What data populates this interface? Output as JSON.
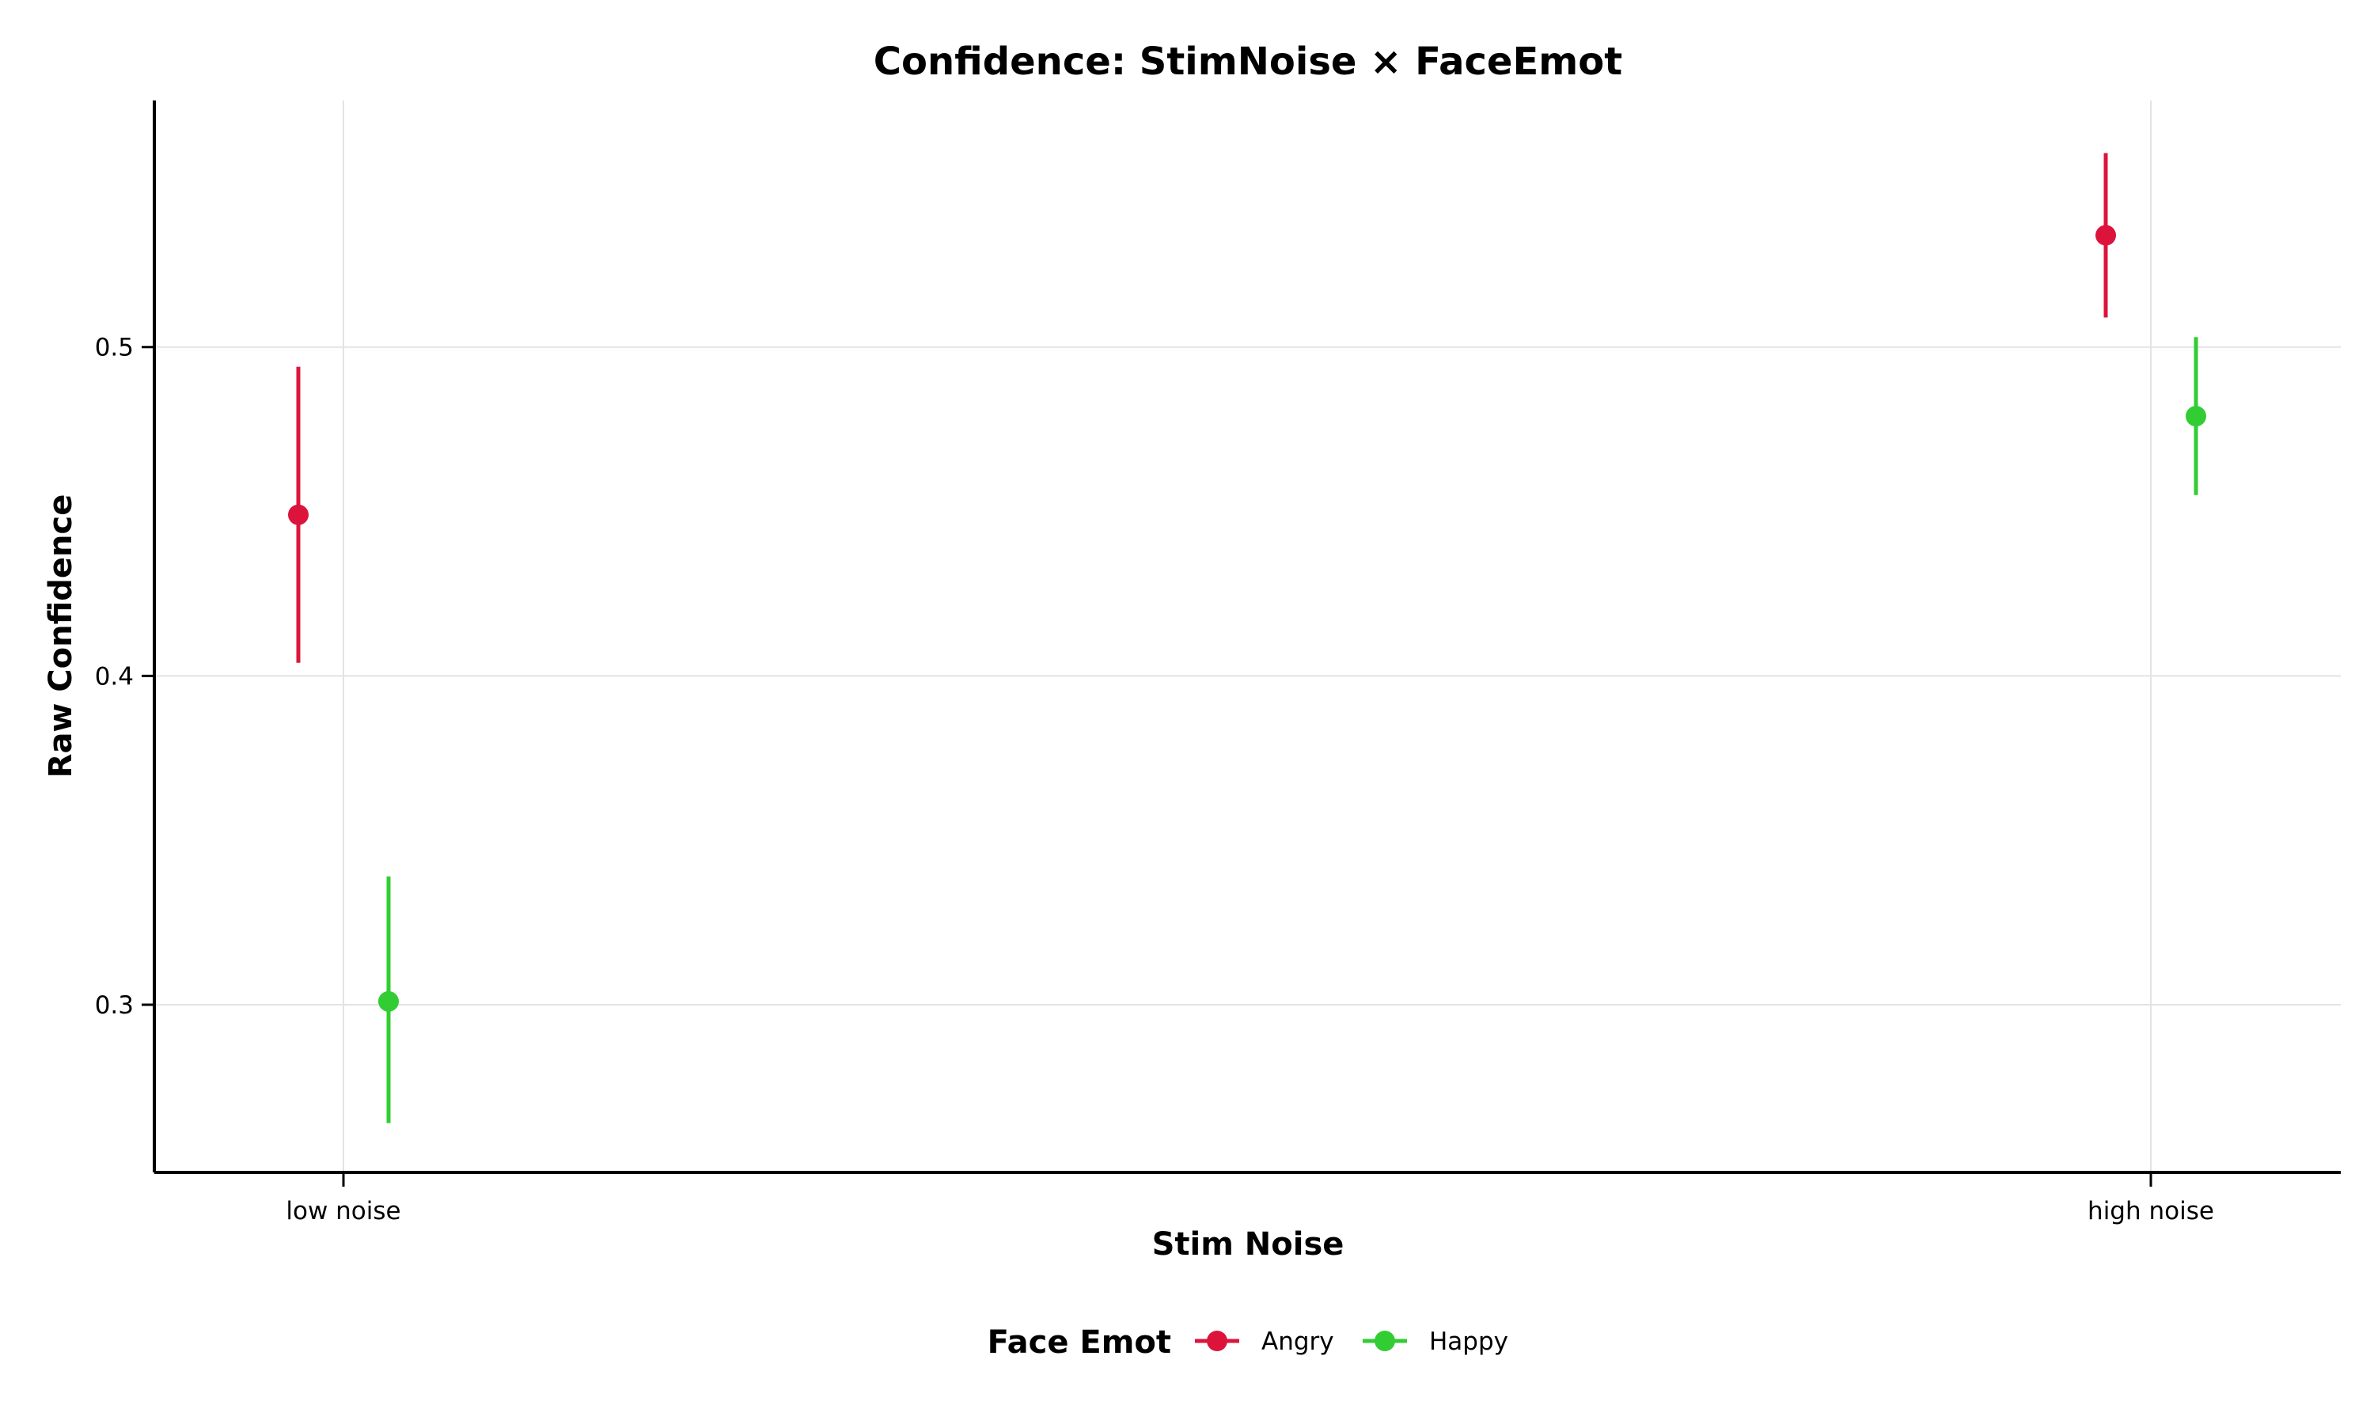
{
  "chart_data": {
    "type": "scatter",
    "title": "Confidence: StimNoise × FaceEmot",
    "xlabel": "Stim Noise",
    "ylabel": "Raw Confidence",
    "categories": [
      "low noise",
      "high noise"
    ],
    "ylim": [
      0.249,
      0.575
    ],
    "yticks": [
      0.3,
      0.4,
      0.5
    ],
    "ytick_labels": [
      "0.3",
      "0.4",
      "0.5"
    ],
    "grid": true,
    "legend": {
      "title": "Face Emot",
      "position": "bottom"
    },
    "series": [
      {
        "name": "Angry",
        "color": "#dc143c",
        "values": [
          0.449,
          0.534
        ],
        "error_low": [
          0.404,
          0.509
        ],
        "error_high": [
          0.494,
          0.559
        ]
      },
      {
        "name": "Happy",
        "color": "#32cd32",
        "values": [
          0.301,
          0.479
        ],
        "error_low": [
          0.264,
          0.455
        ],
        "error_high": [
          0.339,
          0.503
        ]
      }
    ]
  }
}
